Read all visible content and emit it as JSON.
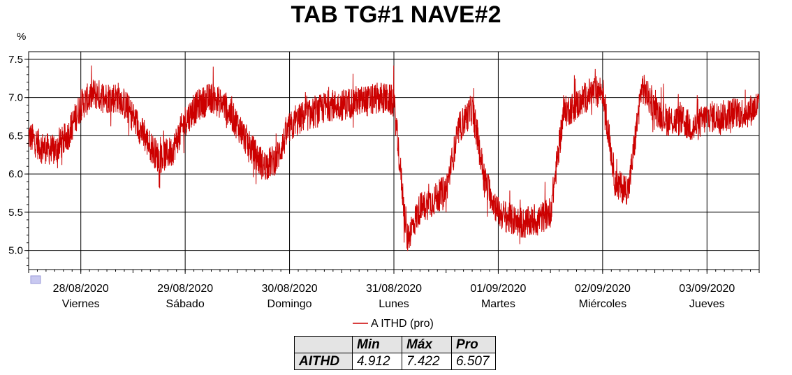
{
  "title": "TAB TG#1 NAVE#2",
  "chart_data": {
    "type": "line",
    "title": "TAB TG#1 NAVE#2",
    "ylabel": "%",
    "ylim": [
      4.75,
      7.6
    ],
    "yticks": [
      "5.0",
      "5.5",
      "6.0",
      "6.5",
      "7.0",
      "7.5"
    ],
    "x_start": "27/08/2020 12:00",
    "x_end": "03/09/2020 12:00",
    "xticks": [
      {
        "date": "28/08/2020",
        "day": "Viernes"
      },
      {
        "date": "29/08/2020",
        "day": "Sábado"
      },
      {
        "date": "30/08/2020",
        "day": "Domingo"
      },
      {
        "date": "31/08/2020",
        "day": "Lunes"
      },
      {
        "date": "01/09/2020",
        "day": "Martes"
      },
      {
        "date": "02/09/2020",
        "day": "Miércoles"
      },
      {
        "date": "03/09/2020",
        "day": "Jueves"
      }
    ],
    "grid": true,
    "legend_position": "bottom",
    "series": [
      {
        "name": "A ITHD (pro)",
        "color": "#cc0000",
        "x_hours_from_start": [
          0,
          3,
          6,
          9,
          12,
          15,
          18,
          21,
          24,
          27,
          30,
          33,
          36,
          39,
          42,
          45,
          48,
          51,
          54,
          57,
          60,
          63,
          66,
          69,
          72,
          75,
          78,
          81,
          84,
          87,
          90,
          93,
          96,
          99,
          102,
          105,
          108,
          111,
          114,
          117,
          120,
          123,
          126,
          129,
          132,
          135,
          138,
          141,
          144,
          147,
          150,
          153,
          156,
          159,
          162,
          165,
          168
        ],
        "values": [
          6.5,
          6.35,
          6.3,
          6.5,
          6.9,
          7.05,
          7.0,
          7.0,
          6.75,
          6.45,
          6.2,
          6.3,
          6.7,
          6.9,
          7.0,
          6.9,
          6.65,
          6.35,
          6.1,
          6.2,
          6.6,
          6.75,
          6.8,
          6.9,
          6.9,
          6.95,
          6.95,
          7.0,
          6.95,
          5.15,
          5.55,
          5.65,
          5.8,
          6.6,
          6.85,
          5.9,
          5.5,
          5.4,
          5.35,
          5.4,
          5.5,
          6.8,
          6.9,
          7.05,
          7.1,
          5.85,
          5.8,
          7.15,
          6.85,
          6.7,
          6.7,
          6.6,
          6.75,
          6.75,
          6.8,
          6.8,
          6.9
        ]
      }
    ],
    "stats_table": {
      "columns": [
        "Min",
        "Máx",
        "Pro"
      ],
      "row_label": "AITHD",
      "values": [
        "4.912",
        "7.422",
        "6.507"
      ]
    }
  }
}
